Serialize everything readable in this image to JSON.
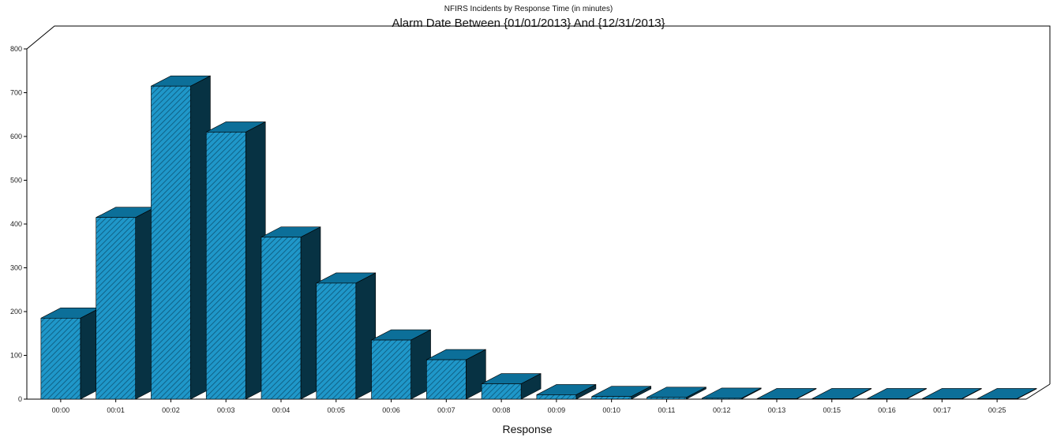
{
  "chart_data": {
    "type": "bar",
    "title": "NFIRS Incidents by Response Time (in minutes)",
    "subtitle": "Alarm Date Between {01/01/2013} And {12/31/2013}",
    "xlabel": "Response",
    "ylabel": "",
    "ylim": [
      0,
      800
    ],
    "yticks": [
      "0",
      "100",
      "200",
      "300",
      "400",
      "500",
      "600",
      "700",
      "800"
    ],
    "categories": [
      "00:00",
      "00:01",
      "00:02",
      "00:03",
      "00:04",
      "00:05",
      "00:06",
      "00:07",
      "00:08",
      "00:09",
      "00:10",
      "00:11",
      "00:12",
      "00:13",
      "00:15",
      "00:16",
      "00:17",
      "00:25"
    ],
    "values": [
      185,
      415,
      715,
      610,
      370,
      265,
      135,
      90,
      35,
      10,
      6,
      4,
      2,
      1,
      1,
      1,
      1,
      1
    ],
    "grid": false,
    "legend": "none",
    "colors": {
      "front": "#1f97c9",
      "top": "#0c6f99",
      "side": "#073243",
      "hatch": "#0b5577",
      "axis": "#000000"
    }
  }
}
